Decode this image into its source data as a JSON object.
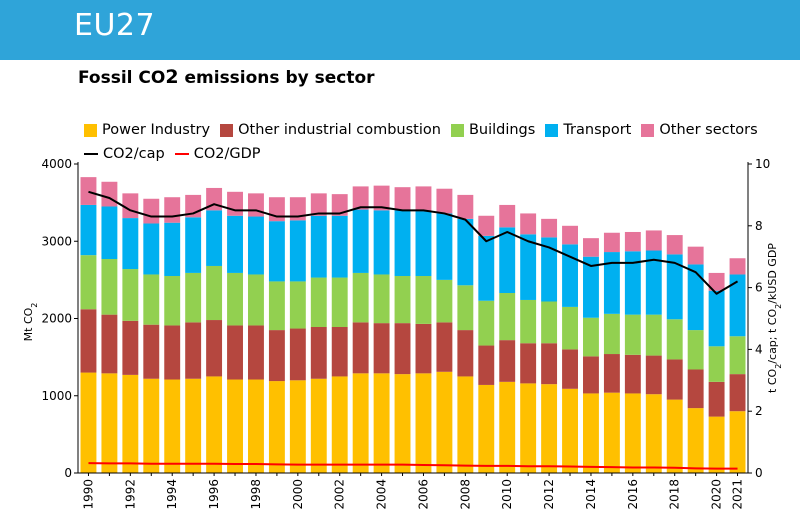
{
  "header": {
    "title": "EU27",
    "band_color": "#2fa4d9"
  },
  "chart_title": {
    "prefix": "Fossil CO",
    "sub": "2",
    "suffix": " emissions by sector"
  },
  "chart_data": {
    "type": "bar",
    "stacked": true,
    "categories": [
      "1990",
      "1991",
      "1992",
      "1993",
      "1994",
      "1995",
      "1996",
      "1997",
      "1998",
      "1999",
      "2000",
      "2001",
      "2002",
      "2003",
      "2004",
      "2005",
      "2006",
      "2007",
      "2008",
      "2009",
      "2010",
      "2011",
      "2012",
      "2013",
      "2014",
      "2015",
      "2016",
      "2017",
      "2018",
      "2019",
      "2020",
      "2021"
    ],
    "x_tick_labels": [
      "1990",
      "1992",
      "1994",
      "1996",
      "1998",
      "2000",
      "2002",
      "2004",
      "2006",
      "2008",
      "2010",
      "2012",
      "2014",
      "2016",
      "2018",
      "2020",
      "2021"
    ],
    "series": [
      {
        "name": "Power Industry",
        "color": "#ffc000",
        "values": [
          1300,
          1290,
          1270,
          1220,
          1210,
          1220,
          1250,
          1210,
          1210,
          1190,
          1200,
          1220,
          1250,
          1290,
          1290,
          1280,
          1290,
          1310,
          1250,
          1140,
          1180,
          1160,
          1150,
          1090,
          1030,
          1040,
          1030,
          1020,
          950,
          840,
          730,
          800
        ]
      },
      {
        "name": "Other industrial combustion",
        "color": "#b5473f",
        "values": [
          820,
          760,
          700,
          700,
          700,
          730,
          730,
          700,
          700,
          660,
          670,
          670,
          640,
          660,
          650,
          660,
          640,
          640,
          600,
          510,
          540,
          520,
          530,
          510,
          480,
          500,
          500,
          500,
          520,
          500,
          450,
          480
        ]
      },
      {
        "name": "Buildings",
        "color": "#92d050",
        "values": [
          700,
          720,
          670,
          650,
          640,
          640,
          700,
          680,
          660,
          630,
          610,
          640,
          640,
          640,
          630,
          610,
          620,
          550,
          580,
          580,
          610,
          560,
          540,
          550,
          500,
          520,
          520,
          530,
          520,
          510,
          460,
          490
        ]
      },
      {
        "name": "Transport",
        "color": "#00b0f0",
        "values": [
          650,
          680,
          660,
          660,
          690,
          720,
          720,
          740,
          750,
          780,
          790,
          800,
          800,
          820,
          830,
          850,
          840,
          860,
          860,
          840,
          850,
          850,
          830,
          810,
          790,
          800,
          820,
          830,
          840,
          850,
          720,
          800
        ]
      },
      {
        "name": "Other sectors",
        "color": "#e6749a",
        "values": [
          360,
          320,
          320,
          320,
          330,
          290,
          290,
          310,
          300,
          310,
          300,
          290,
          280,
          300,
          320,
          300,
          320,
          320,
          310,
          260,
          290,
          270,
          240,
          240,
          240,
          250,
          250,
          260,
          250,
          230,
          230,
          210
        ]
      }
    ],
    "lines": [
      {
        "name": "CO2/cap",
        "color": "#000000",
        "axis": "right",
        "values": [
          9.1,
          8.9,
          8.5,
          8.3,
          8.3,
          8.4,
          8.7,
          8.5,
          8.5,
          8.3,
          8.3,
          8.4,
          8.4,
          8.6,
          8.6,
          8.5,
          8.5,
          8.4,
          8.2,
          7.5,
          7.8,
          7.5,
          7.3,
          7.0,
          6.7,
          6.8,
          6.8,
          6.9,
          6.8,
          6.5,
          5.8,
          6.2
        ]
      },
      {
        "name": "CO2/GDP",
        "color": "#ff0000",
        "axis": "right",
        "values": [
          0.32,
          0.31,
          0.31,
          0.3,
          0.3,
          0.3,
          0.3,
          0.29,
          0.29,
          0.28,
          0.27,
          0.27,
          0.27,
          0.27,
          0.27,
          0.27,
          0.26,
          0.25,
          0.24,
          0.23,
          0.23,
          0.22,
          0.22,
          0.21,
          0.2,
          0.19,
          0.18,
          0.18,
          0.17,
          0.15,
          0.14,
          0.14
        ]
      }
    ],
    "ylabel": "Mt CO2",
    "y2label": "t CO2/cap; t CO2/kUSD GDP",
    "ylim": [
      0,
      4000
    ],
    "y_ticks": [
      0,
      1000,
      2000,
      3000,
      4000
    ],
    "y2lim": [
      0,
      10
    ],
    "y2_ticks": [
      0,
      2,
      4,
      6,
      8,
      10
    ],
    "grid": false,
    "legend_position": "top"
  },
  "legend": {
    "row1": [
      "Power Industry",
      "Other industrial combustion",
      "Buildings",
      "Transport",
      "Other sectors"
    ],
    "row2": [
      "CO2/cap",
      "CO2/GDP"
    ]
  },
  "axis_text": {
    "left_main": "Mt CO",
    "left_sub": "2",
    "right_a": "t CO",
    "right_a_sub": "2",
    "right_b": "/cap; t CO",
    "right_b_sub": "2",
    "right_c": "/kUSD GDP"
  }
}
